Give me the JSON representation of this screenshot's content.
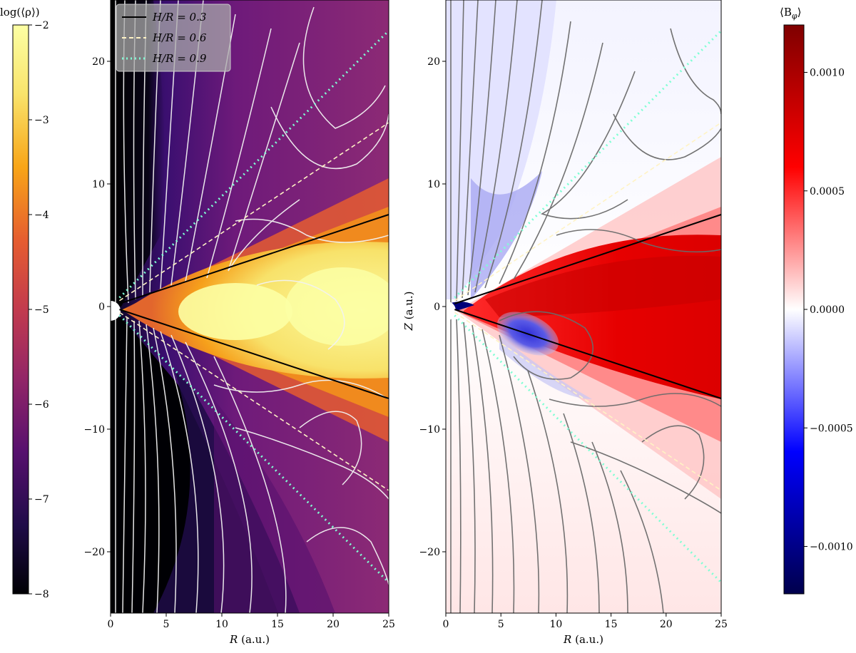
{
  "chart_data": [
    {
      "type": "heatmap",
      "panel": "left",
      "quantity": "log density",
      "xlabel": "R (a.u.)",
      "ylabel": "",
      "xlim": [
        0,
        25
      ],
      "ylim": [
        -25,
        25
      ],
      "x_ticks": [
        "0",
        "5",
        "10",
        "15",
        "20",
        "25"
      ],
      "y_ticks": [
        "−20",
        "−10",
        "0",
        "10",
        "20"
      ],
      "colormap": "inferno",
      "colorbar": {
        "label": "log(⟨ρ⟩)",
        "range": [
          -8,
          -2
        ],
        "ticks": [
          "−2",
          "−3",
          "−4",
          "−5",
          "−6",
          "−7",
          "−8"
        ]
      },
      "streamline_color": "#f2f2f2",
      "legend": {
        "placement": "top-left",
        "entries": [
          {
            "label": "H/R = 0.3",
            "style": "solid",
            "color": "#000000"
          },
          {
            "label": "H/R = 0.6",
            "style": "dashed",
            "color": "#fff3c4"
          },
          {
            "label": "H/R = 0.9",
            "style": "dotted",
            "color": "#7fffd4"
          }
        ]
      },
      "overlay_lines": [
        {
          "label": "H/R = 0.3",
          "slope": 0.3
        },
        {
          "label": "H/R = 0.6",
          "slope": 0.6
        },
        {
          "label": "H/R = 0.9",
          "slope": 0.9
        }
      ]
    },
    {
      "type": "heatmap",
      "panel": "right",
      "quantity": "toroidal magnetic field",
      "xlabel": "R (a.u.)",
      "ylabel": "Z (a.u.)",
      "xlim": [
        0,
        25
      ],
      "ylim": [
        -25,
        25
      ],
      "x_ticks": [
        "0",
        "5",
        "10",
        "15",
        "20",
        "25"
      ],
      "y_ticks": [
        "−20",
        "−10",
        "0",
        "10",
        "20"
      ],
      "colormap": "seismic",
      "colorbar": {
        "label": "⟨B_φ⟩",
        "range": [
          -0.0012,
          0.0012
        ],
        "ticks": [
          "0.0010",
          "0.0005",
          "0.0000",
          "−0.0005",
          "−0.0010"
        ]
      },
      "streamline_color": "#6b6b6b",
      "overlay_lines": [
        {
          "label": "H/R = 0.3",
          "slope": 0.3
        },
        {
          "label": "H/R = 0.6",
          "slope": 0.6
        },
        {
          "label": "H/R = 0.9",
          "slope": 0.9
        }
      ]
    }
  ],
  "labels": {
    "left_cbar_label": "log(⟨ρ⟩)",
    "right_cbar_label": "⟨B",
    "right_cbar_sub": "φ",
    "right_cbar_close": "⟩",
    "left_xlabel_italic": "R",
    "left_xlabel_rest": " (a.u.)",
    "right_xlabel_italic": "R",
    "right_xlabel_rest": " (a.u.)",
    "right_ylabel_italic": "Z",
    "right_ylabel_rest": " (a.u.)",
    "legend_0": "H/R = 0.3",
    "legend_1": "H/R = 0.6",
    "legend_2": "H/R = 0.9"
  },
  "ticks": {
    "x": [
      "0",
      "5",
      "10",
      "15",
      "20",
      "25"
    ],
    "y": [
      "20",
      "10",
      "0",
      "−10",
      "−20"
    ],
    "left_cbar": [
      "−2",
      "−3",
      "−4",
      "−5",
      "−6",
      "−7",
      "−8"
    ],
    "right_cbar": [
      "0.0010",
      "0.0005",
      "0.0000",
      "−0.0005",
      "−0.0010"
    ]
  }
}
